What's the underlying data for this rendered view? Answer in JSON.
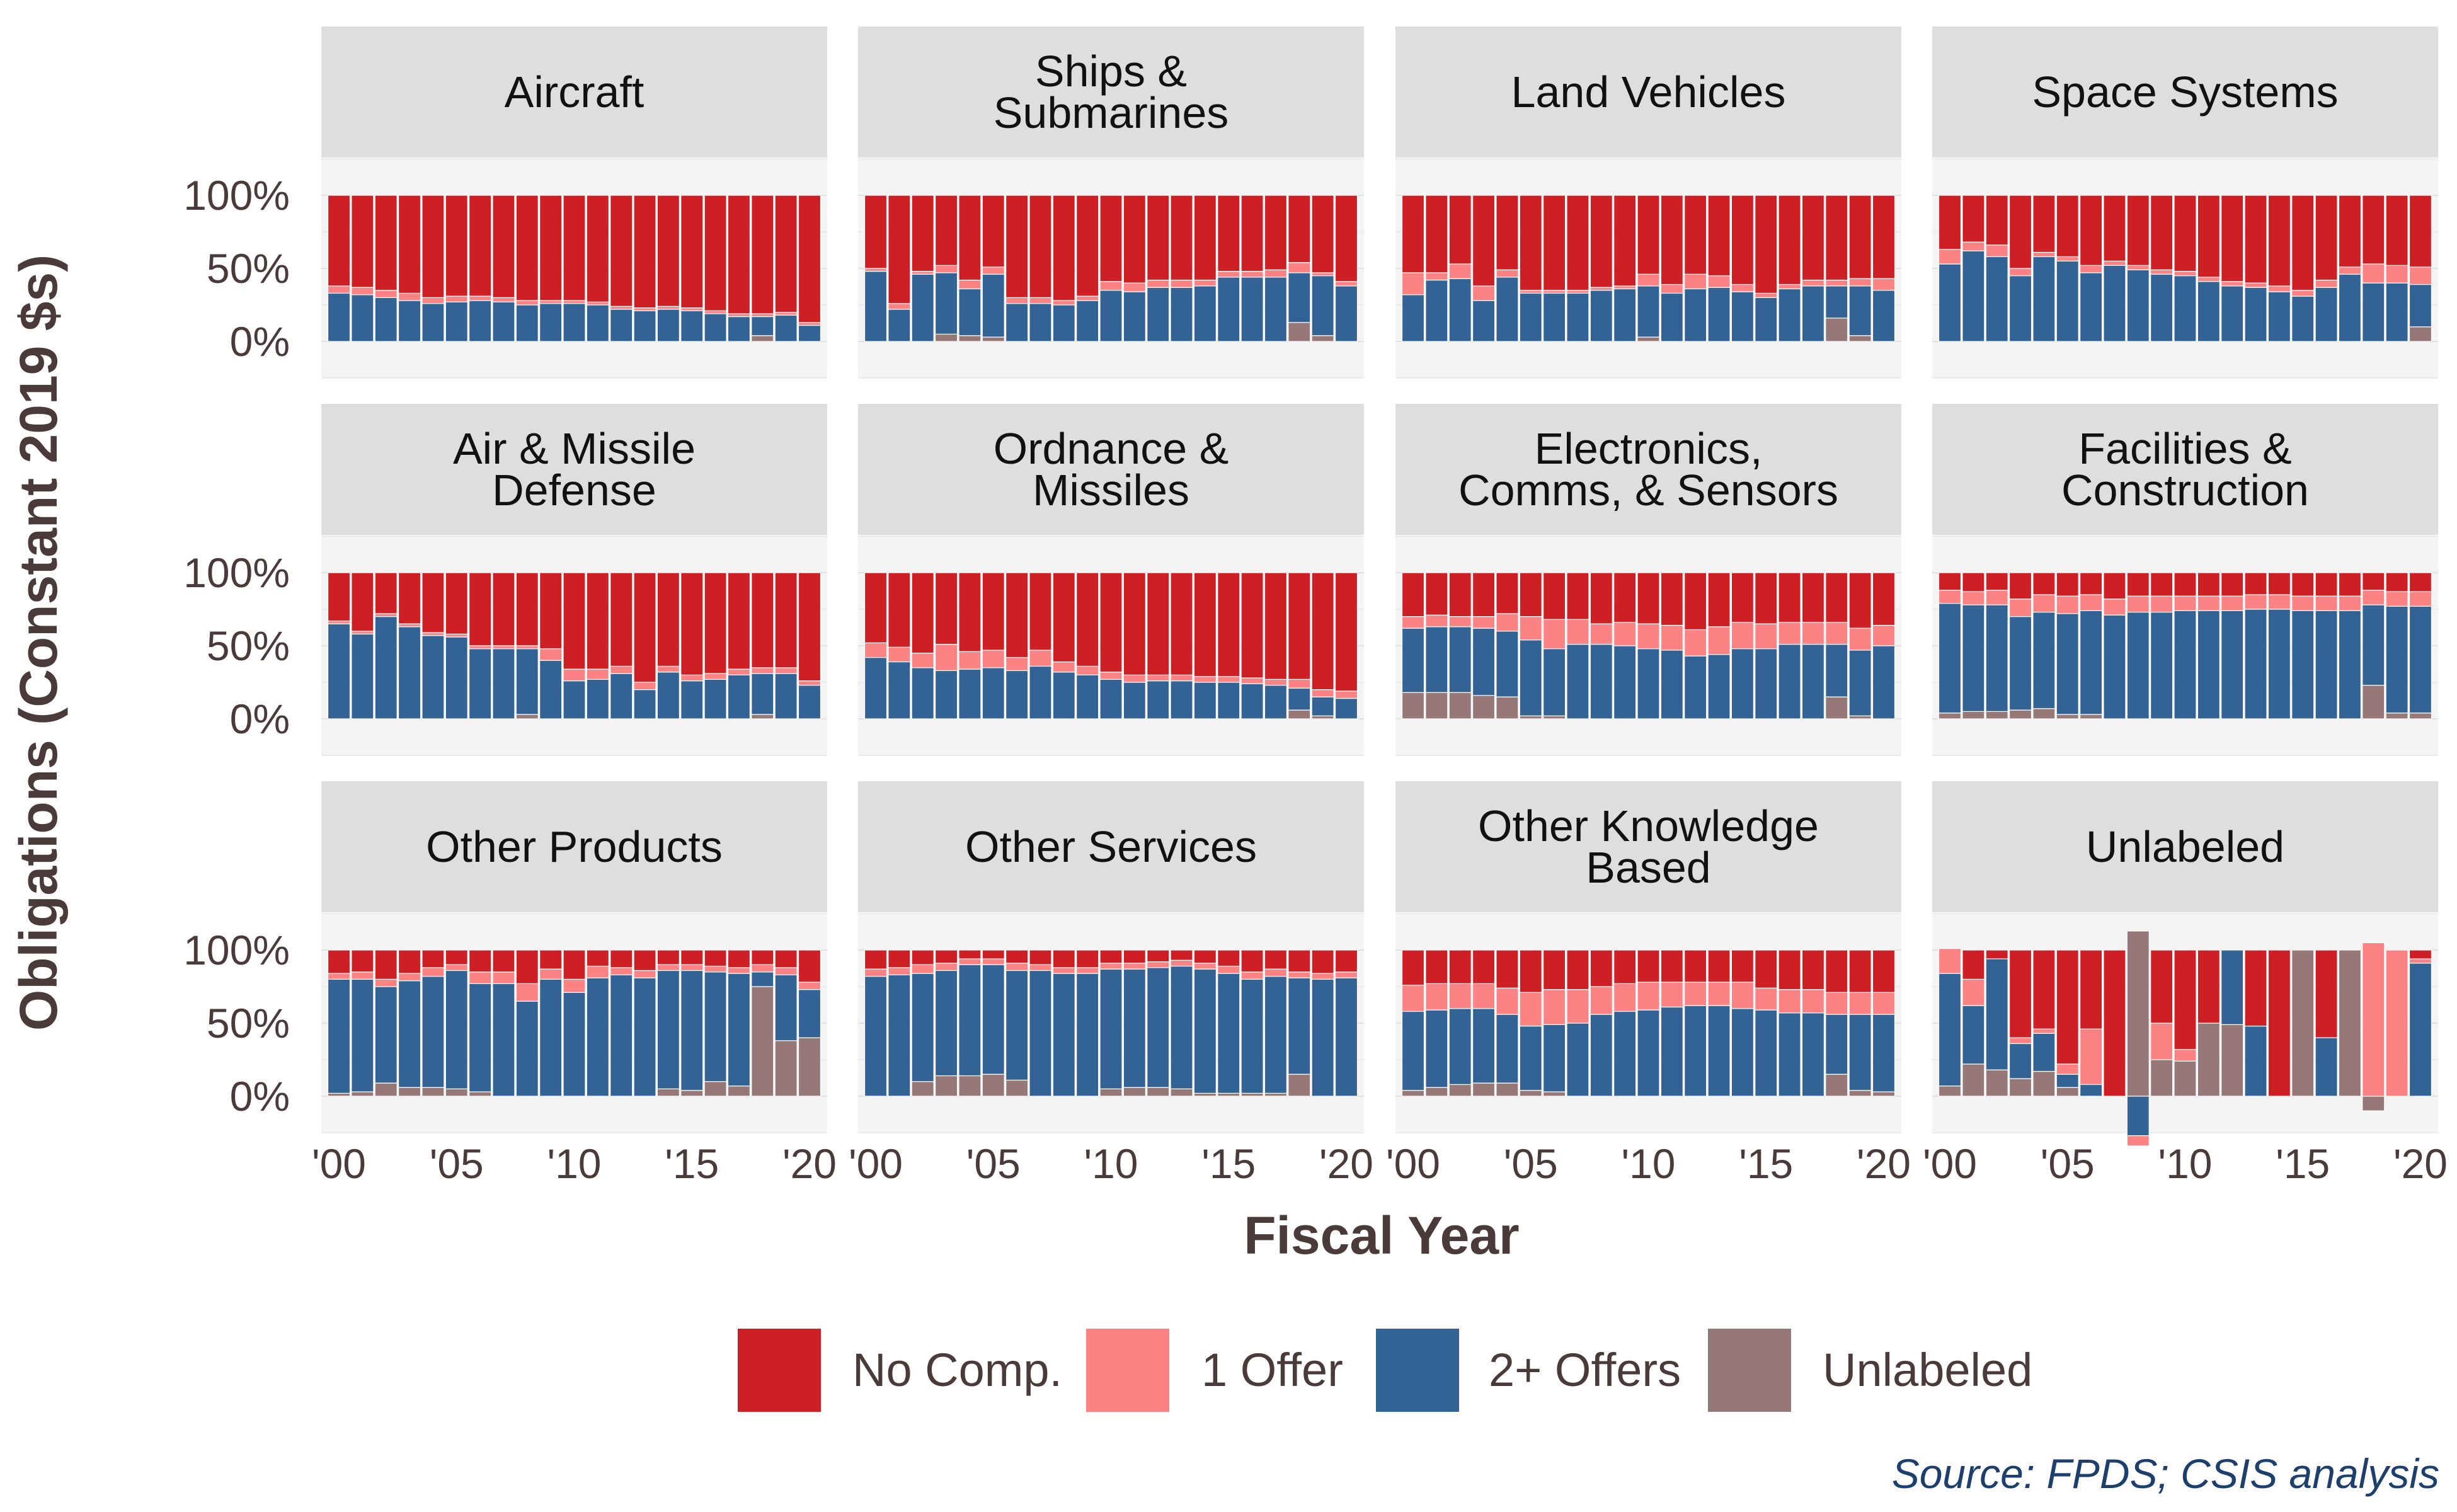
{
  "chart_data": {
    "type": "bar",
    "stacked": true,
    "ylabel": "Obligations (Constant 2019 $s)",
    "xlabel": "Fiscal Year",
    "source": "Source: FPDS; CSIS analysis",
    "x": [
      2000,
      2001,
      2002,
      2003,
      2004,
      2005,
      2006,
      2007,
      2008,
      2009,
      2010,
      2011,
      2012,
      2013,
      2014,
      2015,
      2016,
      2017,
      2018,
      2019,
      2020
    ],
    "x_tick_labels": [
      "'00",
      "'05",
      "'10",
      "'15",
      "'20"
    ],
    "x_tick_values": [
      2000,
      2005,
      2010,
      2015,
      2020
    ],
    "y_tick_labels": [
      "100%",
      "50%",
      "0%"
    ],
    "y_tick_values": [
      1,
      0.5,
      0
    ],
    "ylim": [
      -0.25,
      1.25
    ],
    "grid": true,
    "legend_position": "bottom",
    "series_order": [
      "Unlabeled",
      "2+ Offers",
      "1 Offer",
      "No Comp."
    ],
    "legend": [
      {
        "name": "No Comp.",
        "color": "#CE1F25"
      },
      {
        "name": "1 Offer",
        "color": "#FD8283"
      },
      {
        "name": "2+ Offers",
        "color": "#336394"
      },
      {
        "name": "Unlabeled",
        "color": "#967878"
      }
    ],
    "facets": [
      {
        "name": "Aircraft",
        "unlabeled": [
          0,
          0,
          0,
          0,
          0,
          0,
          0,
          0,
          0,
          0,
          0,
          0,
          0,
          0,
          0,
          0,
          0,
          0,
          0.04,
          0,
          0
        ],
        "two_plus": [
          0.33,
          0.32,
          0.3,
          0.28,
          0.26,
          0.27,
          0.28,
          0.27,
          0.25,
          0.26,
          0.26,
          0.25,
          0.22,
          0.21,
          0.22,
          0.21,
          0.19,
          0.17,
          0.13,
          0.18,
          0.11
        ],
        "one_offer": [
          0.05,
          0.05,
          0.05,
          0.05,
          0.04,
          0.04,
          0.03,
          0.03,
          0.03,
          0.02,
          0.02,
          0.02,
          0.02,
          0.02,
          0.02,
          0.02,
          0.02,
          0.02,
          0.02,
          0.02,
          0.02
        ]
      },
      {
        "name": "Ships & Submarines",
        "unlabeled": [
          0,
          0,
          0,
          0.05,
          0.04,
          0.03,
          0,
          0,
          0,
          0,
          0,
          0,
          0,
          0,
          0,
          0,
          0,
          0,
          0.13,
          0.04,
          0
        ],
        "two_plus": [
          0.48,
          0.22,
          0.46,
          0.42,
          0.32,
          0.43,
          0.26,
          0.26,
          0.25,
          0.28,
          0.35,
          0.34,
          0.37,
          0.37,
          0.38,
          0.44,
          0.44,
          0.44,
          0.34,
          0.41,
          0.38
        ],
        "one_offer": [
          0.02,
          0.04,
          0.02,
          0.05,
          0.06,
          0.05,
          0.04,
          0.04,
          0.03,
          0.03,
          0.06,
          0.06,
          0.05,
          0.05,
          0.04,
          0.04,
          0.04,
          0.05,
          0.07,
          0.02,
          0.03
        ]
      },
      {
        "name": "Land Vehicles",
        "unlabeled": [
          0,
          0,
          0,
          0,
          0,
          0,
          0,
          0,
          0,
          0,
          0.03,
          0,
          0,
          0,
          0,
          0,
          0,
          0,
          0.16,
          0.04,
          0
        ],
        "two_plus": [
          0.32,
          0.42,
          0.43,
          0.28,
          0.44,
          0.33,
          0.33,
          0.33,
          0.35,
          0.36,
          0.35,
          0.33,
          0.36,
          0.37,
          0.34,
          0.3,
          0.36,
          0.38,
          0.22,
          0.34,
          0.35
        ],
        "one_offer": [
          0.15,
          0.05,
          0.1,
          0.1,
          0.05,
          0.02,
          0.02,
          0.02,
          0.02,
          0.02,
          0.08,
          0.06,
          0.1,
          0.08,
          0.05,
          0.03,
          0.03,
          0.04,
          0.04,
          0.05,
          0.08
        ]
      },
      {
        "name": "Space Systems",
        "unlabeled": [
          0,
          0,
          0,
          0,
          0,
          0,
          0,
          0,
          0,
          0,
          0,
          0,
          0,
          0,
          0,
          0,
          0,
          0,
          0,
          0,
          0.1
        ],
        "two_plus": [
          0.53,
          0.62,
          0.58,
          0.45,
          0.58,
          0.55,
          0.47,
          0.52,
          0.49,
          0.46,
          0.45,
          0.41,
          0.38,
          0.37,
          0.34,
          0.31,
          0.37,
          0.46,
          0.4,
          0.4,
          0.29
        ],
        "one_offer": [
          0.1,
          0.06,
          0.08,
          0.05,
          0.03,
          0.03,
          0.05,
          0.03,
          0.03,
          0.03,
          0.03,
          0.03,
          0.03,
          0.03,
          0.04,
          0.04,
          0.05,
          0.05,
          0.13,
          0.12,
          0.12
        ]
      },
      {
        "name": "Air & Missile Defense",
        "unlabeled": [
          0,
          0,
          0,
          0,
          0,
          0,
          0,
          0,
          0.03,
          0,
          0,
          0,
          0,
          0,
          0,
          0,
          0,
          0,
          0.03,
          0,
          0
        ],
        "two_plus": [
          0.65,
          0.58,
          0.7,
          0.63,
          0.57,
          0.56,
          0.48,
          0.48,
          0.45,
          0.4,
          0.26,
          0.27,
          0.31,
          0.2,
          0.32,
          0.26,
          0.27,
          0.3,
          0.28,
          0.31,
          0.23
        ],
        "one_offer": [
          0.02,
          0.02,
          0.02,
          0.02,
          0.02,
          0.02,
          0.02,
          0.02,
          0.02,
          0.08,
          0.08,
          0.07,
          0.05,
          0.05,
          0.04,
          0.04,
          0.04,
          0.04,
          0.04,
          0.04,
          0.03
        ]
      },
      {
        "name": "Ordnance & Missiles",
        "unlabeled": [
          0,
          0,
          0,
          0,
          0,
          0,
          0,
          0,
          0,
          0,
          0,
          0,
          0,
          0,
          0,
          0,
          0,
          0,
          0.06,
          0.02,
          0
        ],
        "two_plus": [
          0.42,
          0.39,
          0.35,
          0.33,
          0.34,
          0.35,
          0.33,
          0.36,
          0.32,
          0.3,
          0.27,
          0.25,
          0.26,
          0.26,
          0.25,
          0.25,
          0.24,
          0.23,
          0.15,
          0.13,
          0.14
        ],
        "one_offer": [
          0.1,
          0.1,
          0.1,
          0.18,
          0.12,
          0.12,
          0.09,
          0.11,
          0.07,
          0.06,
          0.05,
          0.05,
          0.04,
          0.04,
          0.04,
          0.04,
          0.04,
          0.04,
          0.06,
          0.05,
          0.05
        ]
      },
      {
        "name": "Electronics, Comms, & Sensors",
        "unlabeled": [
          0.18,
          0.18,
          0.18,
          0.16,
          0.15,
          0.02,
          0.02,
          0,
          0,
          0,
          0,
          0,
          0,
          0,
          0,
          0,
          0,
          0,
          0.15,
          0.02,
          0
        ],
        "two_plus": [
          0.44,
          0.45,
          0.45,
          0.46,
          0.45,
          0.52,
          0.46,
          0.51,
          0.51,
          0.5,
          0.48,
          0.47,
          0.43,
          0.44,
          0.48,
          0.48,
          0.51,
          0.51,
          0.36,
          0.45,
          0.5
        ],
        "one_offer": [
          0.08,
          0.08,
          0.07,
          0.08,
          0.12,
          0.16,
          0.2,
          0.17,
          0.14,
          0.16,
          0.17,
          0.17,
          0.18,
          0.19,
          0.18,
          0.17,
          0.15,
          0.15,
          0.15,
          0.15,
          0.14
        ]
      },
      {
        "name": "Facilities & Construction",
        "unlabeled": [
          0.04,
          0.05,
          0.05,
          0.06,
          0.07,
          0.03,
          0.03,
          0,
          0,
          0,
          0,
          0,
          0,
          0,
          0,
          0,
          0,
          0,
          0.23,
          0.04,
          0.04
        ],
        "two_plus": [
          0.75,
          0.73,
          0.73,
          0.64,
          0.66,
          0.69,
          0.71,
          0.71,
          0.73,
          0.73,
          0.74,
          0.74,
          0.74,
          0.75,
          0.75,
          0.74,
          0.74,
          0.74,
          0.55,
          0.73,
          0.73
        ],
        "one_offer": [
          0.09,
          0.09,
          0.1,
          0.12,
          0.12,
          0.12,
          0.11,
          0.11,
          0.11,
          0.11,
          0.1,
          0.1,
          0.1,
          0.1,
          0.1,
          0.1,
          0.1,
          0.1,
          0.1,
          0.1,
          0.1
        ]
      },
      {
        "name": "Other Products",
        "unlabeled": [
          0.02,
          0.03,
          0.09,
          0.06,
          0.06,
          0.05,
          0.03,
          0,
          0,
          0,
          0,
          0,
          0,
          0,
          0.05,
          0.04,
          0.1,
          0.07,
          0.75,
          0.38,
          0.4
        ],
        "two_plus": [
          0.78,
          0.77,
          0.66,
          0.73,
          0.76,
          0.81,
          0.74,
          0.77,
          0.65,
          0.8,
          0.71,
          0.81,
          0.83,
          0.81,
          0.81,
          0.82,
          0.75,
          0.77,
          0.1,
          0.45,
          0.33
        ],
        "one_offer": [
          0.04,
          0.05,
          0.05,
          0.05,
          0.06,
          0.04,
          0.08,
          0.08,
          0.12,
          0.07,
          0.09,
          0.08,
          0.05,
          0.05,
          0.04,
          0.04,
          0.04,
          0.04,
          0.05,
          0.05,
          0.05
        ]
      },
      {
        "name": "Other Services",
        "unlabeled": [
          0,
          0,
          0.1,
          0.14,
          0.14,
          0.15,
          0.11,
          0,
          0,
          0,
          0.05,
          0.06,
          0.06,
          0.05,
          0.02,
          0.02,
          0.02,
          0.02,
          0.15,
          0,
          0
        ],
        "two_plus": [
          0.82,
          0.83,
          0.74,
          0.72,
          0.76,
          0.75,
          0.75,
          0.86,
          0.84,
          0.84,
          0.82,
          0.81,
          0.82,
          0.84,
          0.85,
          0.82,
          0.78,
          0.8,
          0.66,
          0.8,
          0.81
        ],
        "one_offer": [
          0.05,
          0.05,
          0.06,
          0.05,
          0.04,
          0.04,
          0.05,
          0.04,
          0.04,
          0.04,
          0.04,
          0.04,
          0.04,
          0.04,
          0.04,
          0.05,
          0.05,
          0.05,
          0.04,
          0.04,
          0.04
        ]
      },
      {
        "name": "Other Knowledge Based",
        "unlabeled": [
          0.04,
          0.06,
          0.08,
          0.09,
          0.09,
          0.04,
          0.03,
          0,
          0,
          0,
          0,
          0,
          0,
          0,
          0,
          0,
          0,
          0,
          0.15,
          0.04,
          0.03
        ],
        "two_plus": [
          0.54,
          0.53,
          0.52,
          0.51,
          0.47,
          0.44,
          0.46,
          0.5,
          0.56,
          0.58,
          0.59,
          0.61,
          0.62,
          0.62,
          0.6,
          0.59,
          0.57,
          0.57,
          0.41,
          0.52,
          0.53
        ],
        "one_offer": [
          0.18,
          0.18,
          0.17,
          0.17,
          0.18,
          0.23,
          0.24,
          0.23,
          0.19,
          0.19,
          0.19,
          0.17,
          0.16,
          0.16,
          0.18,
          0.15,
          0.16,
          0.16,
          0.15,
          0.15,
          0.15
        ]
      },
      {
        "name": "Unlabeled",
        "unlabeled": [
          0.07,
          0.22,
          0.18,
          0.12,
          0.17,
          0.06,
          0,
          0,
          1.13,
          0.25,
          0.24,
          0.5,
          0.49,
          0,
          0,
          1.0,
          0,
          1.0,
          -0.1,
          0,
          0
        ],
        "two_plus": [
          0.77,
          0.4,
          0.76,
          0.24,
          0.26,
          0.09,
          0.08,
          0,
          -0.27,
          0,
          0,
          0,
          0.51,
          0.48,
          0,
          0,
          0.4,
          0,
          0,
          0,
          0.91
        ],
        "one_offer": [
          0.17,
          0.18,
          0,
          0.04,
          0.03,
          0.07,
          0.38,
          0,
          -0.07,
          0.25,
          0.08,
          0,
          0,
          0,
          0.0,
          0,
          0,
          0,
          1.05,
          1.0,
          0.03
        ]
      }
    ]
  }
}
